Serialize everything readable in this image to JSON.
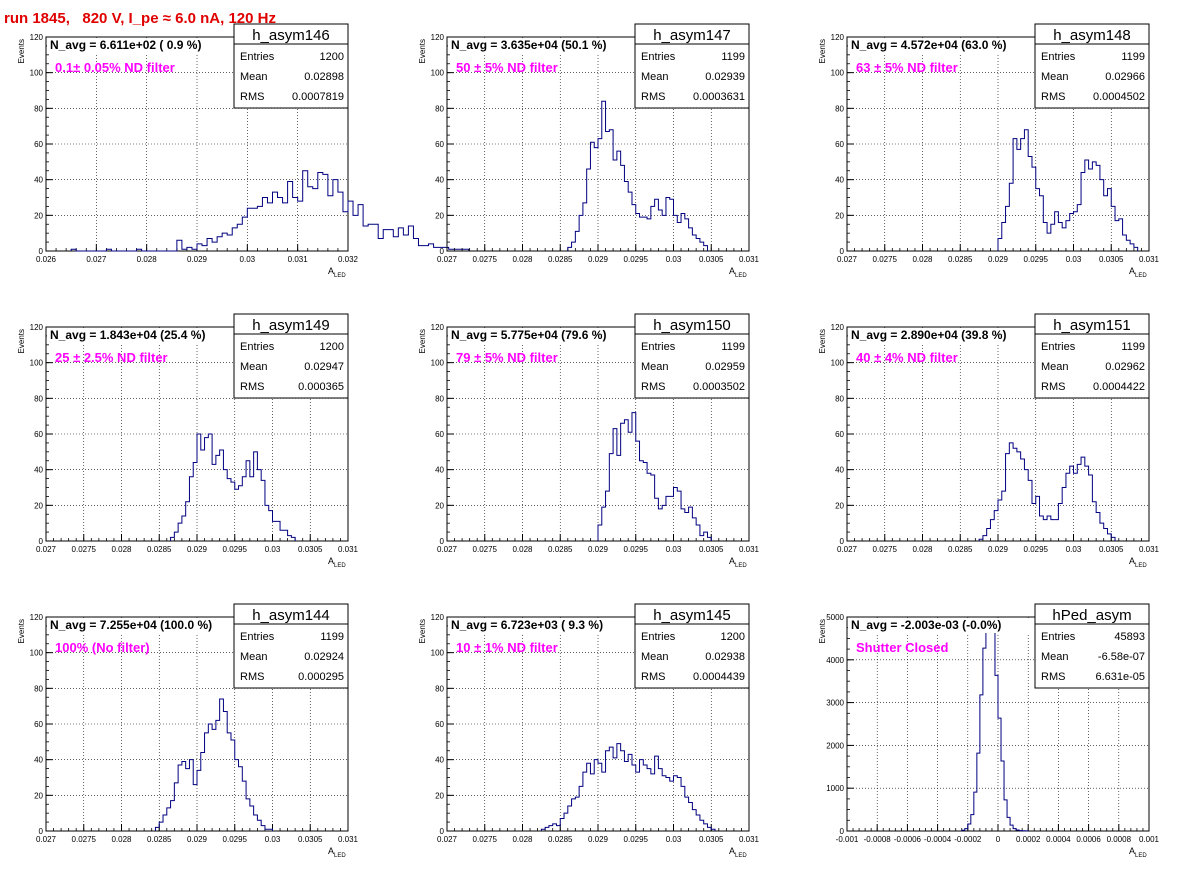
{
  "run_title": "run 1845,   820 V, I_pe ≈ 6.0 nA, 120 Hz",
  "stat_labels": {
    "entries": "Entries",
    "mean": "Mean",
    "rms": "RMS"
  },
  "y_axis_label": "Events",
  "x_axis_label_main": "A",
  "x_axis_label_sub": "LED",
  "colors": {
    "title": "#e00000",
    "annotation": "#ff00ff",
    "histogram": "#000080",
    "grid": "#000000"
  },
  "chart_data": [
    {
      "type": "histogram",
      "name": "h_asym146",
      "navg": "N_avg = 6.611e+02 ( 0.9 %)",
      "annotation": "0.1± 0.05% ND filter",
      "stats": {
        "entries": "1200",
        "mean": "0.02898",
        "rms": "0.0007819"
      },
      "xlim": [
        0.026,
        0.032
      ],
      "ylim": [
        0,
        120
      ],
      "grid": true,
      "xticks": [
        "0.026",
        "0.027",
        "0.028",
        "0.029",
        "0.03",
        "0.031",
        "0.032"
      ],
      "yticks": [
        "0",
        "20",
        "40",
        "60",
        "80",
        "100",
        "120"
      ],
      "x_bin_start": 0.0265,
      "bin_width": 0.0001,
      "counts": [
        1,
        0,
        0,
        0,
        0,
        0,
        0,
        1,
        0,
        0,
        0,
        0,
        0,
        1,
        0,
        0,
        0,
        0,
        0,
        0,
        0,
        6,
        1,
        2,
        1,
        4,
        3,
        7,
        5,
        8,
        10,
        9,
        13,
        15,
        19,
        24,
        24,
        25,
        30,
        27,
        33,
        30,
        27,
        39,
        30,
        28,
        45,
        36,
        35,
        44,
        43,
        31,
        40,
        33,
        22,
        28,
        20,
        26,
        14,
        15,
        15,
        7,
        12,
        12,
        8,
        13,
        9,
        14,
        7,
        3,
        3,
        4,
        2,
        2,
        2,
        1,
        1,
        1,
        1,
        0
      ]
    },
    {
      "type": "histogram",
      "name": "h_asym147",
      "navg": "N_avg = 3.635e+04 (50.1 %)",
      "annotation": "50 ± 5% ND filter",
      "stats": {
        "entries": "1199",
        "mean": "0.02939",
        "rms": "0.0003631"
      },
      "xlim": [
        0.027,
        0.031
      ],
      "ylim": [
        0,
        120
      ],
      "grid": true,
      "xticks": [
        "0.027",
        "0.0275",
        "0.028",
        "0.0285",
        "0.029",
        "0.0295",
        "0.03",
        "0.0305",
        "0.031"
      ],
      "yticks": [
        "0",
        "20",
        "40",
        "60",
        "80",
        "100",
        "120"
      ],
      "x_bin_start": 0.0286,
      "bin_width": 5e-05,
      "counts": [
        2,
        5,
        11,
        20,
        27,
        46,
        61,
        58,
        63,
        84,
        67,
        68,
        51,
        56,
        48,
        39,
        33,
        26,
        21,
        19,
        19,
        18,
        25,
        29,
        23,
        20,
        30,
        29,
        20,
        16,
        21,
        18,
        13,
        9,
        7,
        5,
        3
      ]
    },
    {
      "type": "histogram",
      "name": "h_asym148",
      "navg": "N_avg = 4.572e+04 (63.0 %)",
      "annotation": "63 ± 5% ND filter",
      "stats": {
        "entries": "1199",
        "mean": "0.02966",
        "rms": "0.0004502"
      },
      "xlim": [
        0.027,
        0.031
      ],
      "ylim": [
        0,
        120
      ],
      "grid": true,
      "xticks": [
        "0.027",
        "0.0275",
        "0.028",
        "0.0285",
        "0.029",
        "0.0295",
        "0.03",
        "0.0305",
        "0.031"
      ],
      "yticks": [
        "0",
        "20",
        "40",
        "60",
        "80",
        "100",
        "120"
      ],
      "x_bin_start": 0.029,
      "bin_width": 5e-05,
      "counts": [
        7,
        16,
        25,
        38,
        63,
        57,
        63,
        68,
        53,
        47,
        35,
        31,
        16,
        10,
        15,
        22,
        16,
        13,
        17,
        21,
        22,
        26,
        44,
        51,
        46,
        50,
        48,
        40,
        31,
        35,
        25,
        17,
        18,
        9,
        6,
        4,
        2
      ]
    },
    {
      "type": "histogram",
      "name": "h_asym149",
      "navg": "N_avg = 1.843e+04 (25.4 %)",
      "annotation": "25 ± 2.5% ND filter",
      "stats": {
        "entries": "1200",
        "mean": "0.02947",
        "rms": "0.000365"
      },
      "xlim": [
        0.027,
        0.031
      ],
      "ylim": [
        0,
        120
      ],
      "grid": true,
      "xticks": [
        "0.027",
        "0.0275",
        "0.028",
        "0.0285",
        "0.029",
        "0.0295",
        "0.03",
        "0.0305",
        "0.031"
      ],
      "yticks": [
        "0",
        "20",
        "40",
        "60",
        "80",
        "100",
        "120"
      ],
      "x_bin_start": 0.02865,
      "bin_width": 5e-05,
      "counts": [
        2,
        5,
        10,
        14,
        22,
        36,
        44,
        60,
        51,
        58,
        60,
        43,
        48,
        51,
        40,
        35,
        33,
        29,
        31,
        36,
        45,
        36,
        50,
        40,
        34,
        20,
        17,
        11,
        11,
        6,
        6,
        3,
        2
      ]
    },
    {
      "type": "histogram",
      "name": "h_asym150",
      "navg": "N_avg = 5.775e+04 (79.6 %)",
      "annotation": "79 ± 5% ND filter",
      "stats": {
        "entries": "1199",
        "mean": "0.02959",
        "rms": "0.0003502"
      },
      "xlim": [
        0.027,
        0.031
      ],
      "ylim": [
        0,
        120
      ],
      "grid": true,
      "xticks": [
        "0.027",
        "0.0275",
        "0.028",
        "0.0285",
        "0.029",
        "0.0295",
        "0.03",
        "0.0305",
        "0.031"
      ],
      "yticks": [
        "0",
        "20",
        "40",
        "60",
        "80",
        "100",
        "120"
      ],
      "x_bin_start": 0.029,
      "bin_width": 5e-05,
      "counts": [
        9,
        19,
        28,
        49,
        63,
        48,
        66,
        68,
        61,
        72,
        56,
        45,
        44,
        38,
        37,
        24,
        18,
        20,
        25,
        25,
        30,
        28,
        18,
        16,
        19,
        13,
        9,
        3,
        5,
        2
      ]
    },
    {
      "type": "histogram",
      "name": "h_asym151",
      "navg": "N_avg = 2.890e+04 (39.8 %)",
      "annotation": "40 ± 4% ND filter",
      "stats": {
        "entries": "1199",
        "mean": "0.02962",
        "rms": "0.0004422"
      },
      "xlim": [
        0.027,
        0.031
      ],
      "ylim": [
        0,
        120
      ],
      "grid": true,
      "xticks": [
        "0.027",
        "0.0275",
        "0.028",
        "0.0285",
        "0.029",
        "0.0295",
        "0.03",
        "0.0305",
        "0.031"
      ],
      "yticks": [
        "0",
        "20",
        "40",
        "60",
        "80",
        "100",
        "120"
      ],
      "x_bin_start": 0.02875,
      "bin_width": 5e-05,
      "counts": [
        1,
        3,
        7,
        12,
        17,
        23,
        28,
        49,
        55,
        52,
        50,
        46,
        40,
        34,
        21,
        25,
        14,
        12,
        14,
        12,
        12,
        21,
        30,
        38,
        42,
        38,
        43,
        47,
        42,
        37,
        22,
        16,
        10,
        7,
        4,
        2
      ]
    },
    {
      "type": "histogram",
      "name": "h_asym144",
      "navg": "N_avg = 7.255e+04 (100.0 %)",
      "annotation": "100% (No filter)",
      "stats": {
        "entries": "1199",
        "mean": "0.02924",
        "rms": "0.000295"
      },
      "xlim": [
        0.027,
        0.031
      ],
      "ylim": [
        0,
        120
      ],
      "grid": true,
      "xticks": [
        "0.027",
        "0.0275",
        "0.028",
        "0.0285",
        "0.029",
        "0.0295",
        "0.03",
        "0.0305",
        "0.031"
      ],
      "yticks": [
        "0",
        "20",
        "40",
        "60",
        "80",
        "100",
        "120"
      ],
      "x_bin_start": 0.02845,
      "bin_width": 5e-05,
      "counts": [
        2,
        5,
        9,
        13,
        17,
        27,
        37,
        39,
        35,
        40,
        26,
        34,
        44,
        55,
        60,
        57,
        62,
        74,
        67,
        55,
        51,
        40,
        36,
        28,
        18,
        14,
        9,
        6,
        3,
        1,
        1
      ]
    },
    {
      "type": "histogram",
      "name": "h_asym145",
      "navg": "N_avg = 6.723e+03 ( 9.3 %)",
      "annotation": "10 ± 1% ND filter",
      "stats": {
        "entries": "1200",
        "mean": "0.02938",
        "rms": "0.0004439"
      },
      "xlim": [
        0.027,
        0.031
      ],
      "ylim": [
        0,
        120
      ],
      "grid": true,
      "xticks": [
        "0.027",
        "0.0275",
        "0.028",
        "0.0285",
        "0.029",
        "0.0295",
        "0.03",
        "0.0305",
        "0.031"
      ],
      "yticks": [
        "0",
        "20",
        "40",
        "60",
        "80",
        "100",
        "120"
      ],
      "x_bin_start": 0.02825,
      "bin_width": 5e-05,
      "counts": [
        1,
        2,
        3,
        4,
        3,
        7,
        10,
        14,
        18,
        19,
        25,
        33,
        38,
        32,
        40,
        38,
        33,
        45,
        47,
        41,
        49,
        45,
        39,
        43,
        37,
        33,
        40,
        37,
        35,
        32,
        42,
        35,
        31,
        30,
        28,
        31,
        30,
        25,
        19,
        16,
        12,
        9,
        6,
        4,
        2,
        1
      ]
    },
    {
      "type": "histogram",
      "name": "hPed_asym",
      "navg": "N_avg = -2.003e-03 (-0.0%)",
      "annotation": "Shutter Closed",
      "stats": {
        "entries": "45893",
        "mean": "-6.58e-07",
        "rms": "6.631e-05"
      },
      "xlim": [
        -0.001,
        0.001
      ],
      "ylim": [
        0,
        5500
      ],
      "grid": true,
      "xticks": [
        "-0.001",
        "-0.0008",
        "-0.0006",
        "-0.0004",
        "-0.0002",
        "0",
        "0.0002",
        "0.0004",
        "0.0006",
        "0.0008",
        "0.001"
      ],
      "yticks": [
        "0",
        "1000",
        "2000",
        "3000",
        "4000",
        "5000"
      ],
      "x_bin_start": -0.00024,
      "bin_width": 2e-05,
      "counts": [
        20,
        60,
        180,
        420,
        1000,
        2000,
        3500,
        4700,
        5300,
        5400,
        5100,
        4000,
        2900,
        1800,
        800,
        350,
        150,
        60,
        25,
        10,
        5,
        2
      ]
    }
  ]
}
